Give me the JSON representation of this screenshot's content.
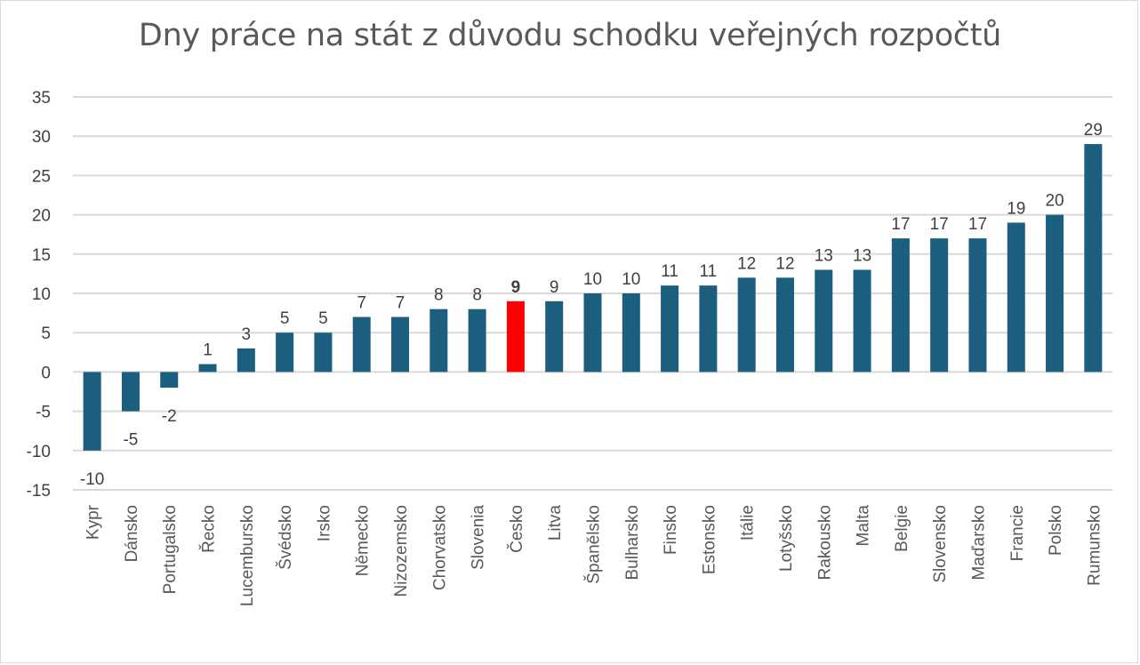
{
  "chart_data": {
    "type": "bar",
    "title": "Dny práce na stát z důvodu schodku veřejných rozpočtů",
    "xlabel": "",
    "ylabel": "",
    "ylim": [
      -15,
      35
    ],
    "yticks": [
      35,
      30,
      25,
      20,
      15,
      10,
      5,
      0,
      -5,
      -10,
      -15
    ],
    "grid": true,
    "legend": "none",
    "categories": [
      "Kypr",
      "Dánsko",
      "Portugalsko",
      "Řecko",
      "Lucembursko",
      "Švédsko",
      "Irsko",
      "Německo",
      "Nizozemsko",
      "Chorvatsko",
      "Slovenia",
      "Česko",
      "Litva",
      "Španělsko",
      "Bulharsko",
      "Finsko",
      "Estonsko",
      "Itálie",
      "Lotyšsko",
      "Rakousko",
      "Malta",
      "Belgie",
      "Slovensko",
      "Maďarsko",
      "Francie",
      "Polsko",
      "Rumunsko"
    ],
    "values": [
      -10,
      -5,
      -2,
      1,
      3,
      5,
      5,
      7,
      7,
      8,
      8,
      9,
      9,
      10,
      10,
      11,
      11,
      12,
      12,
      13,
      13,
      17,
      17,
      17,
      19,
      20,
      29
    ],
    "highlight_category": "Česko",
    "colors": {
      "bar": "#1b5e7e",
      "highlight": "#ff0000",
      "grid": "#d9d9d9",
      "text": "#404040",
      "title": "#595959"
    }
  }
}
